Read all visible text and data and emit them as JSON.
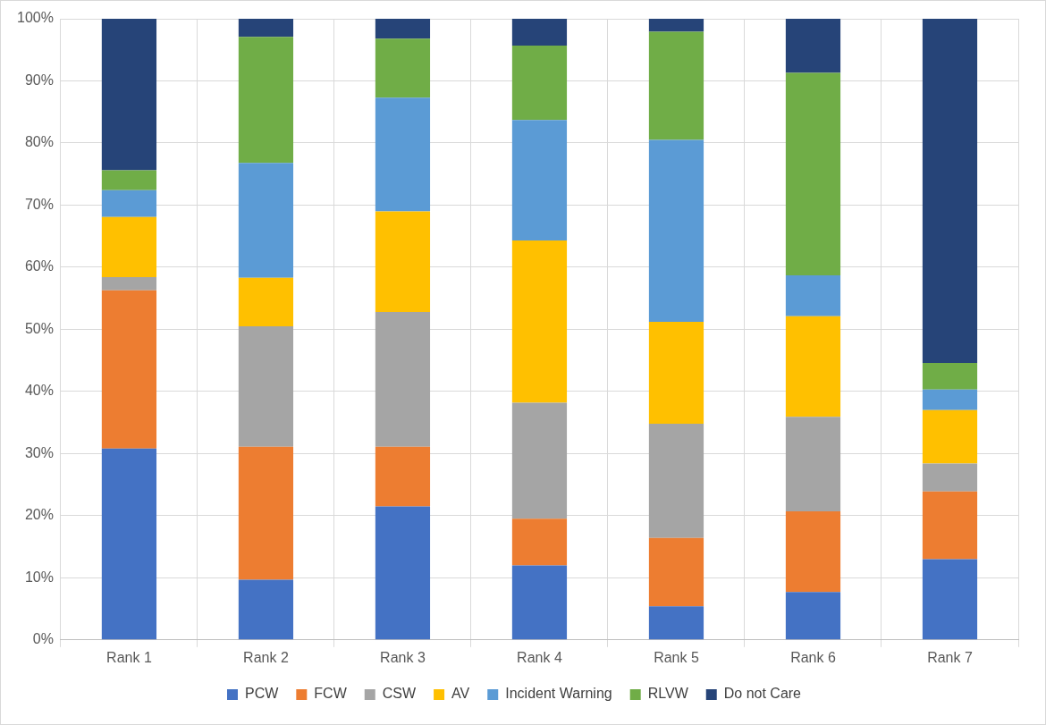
{
  "chart_data": {
    "type": "bar",
    "stacked": true,
    "categories": [
      "Rank 1",
      "Rank 2",
      "Rank 3",
      "Rank 4",
      "Rank 5",
      "Rank 6",
      "Rank 7"
    ],
    "series": [
      {
        "name": "PCW",
        "color": "#4472c4",
        "values": [
          30.8,
          9.7,
          21.5,
          12.0,
          5.4,
          7.7,
          13.0
        ]
      },
      {
        "name": "FCW",
        "color": "#ed7d31",
        "values": [
          25.5,
          21.4,
          9.6,
          7.5,
          11.0,
          13.0,
          10.9
        ]
      },
      {
        "name": "CSW",
        "color": "#a5a5a5",
        "values": [
          2.1,
          19.4,
          21.7,
          18.7,
          18.4,
          15.2,
          4.5
        ]
      },
      {
        "name": "AV",
        "color": "#ffc000",
        "values": [
          9.7,
          7.8,
          16.2,
          26.1,
          16.4,
          16.2,
          8.6
        ]
      },
      {
        "name": "Incident Warning",
        "color": "#5b9bd5",
        "values": [
          4.3,
          18.5,
          18.3,
          19.4,
          29.3,
          6.6,
          3.3
        ]
      },
      {
        "name": "RLVW",
        "color": "#70ad47",
        "values": [
          3.2,
          20.3,
          9.5,
          12.0,
          17.4,
          32.6,
          4.3
        ]
      },
      {
        "name": "Do not Care",
        "color": "#264478",
        "values": [
          24.4,
          2.9,
          3.2,
          4.3,
          2.1,
          8.7,
          55.4
        ]
      }
    ],
    "ylim": [
      0,
      100
    ],
    "yticks": [
      {
        "value": 0,
        "label": "0%"
      },
      {
        "value": 10,
        "label": "10%"
      },
      {
        "value": 20,
        "label": "20%"
      },
      {
        "value": 30,
        "label": "30%"
      },
      {
        "value": 40,
        "label": "40%"
      },
      {
        "value": 50,
        "label": "50%"
      },
      {
        "value": 60,
        "label": "60%"
      },
      {
        "value": 70,
        "label": "70%"
      },
      {
        "value": 80,
        "label": "80%"
      },
      {
        "value": 90,
        "label": "90%"
      },
      {
        "value": 100,
        "label": "100%"
      }
    ],
    "grid": true,
    "legend": "bottom"
  }
}
